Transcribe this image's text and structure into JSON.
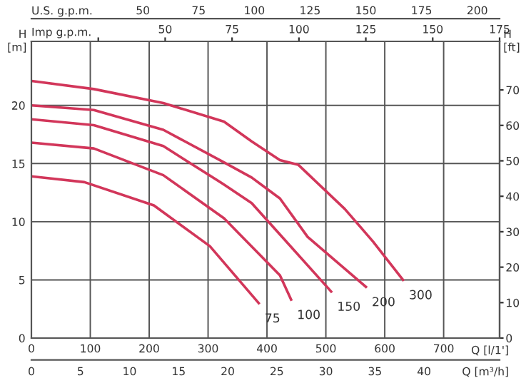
{
  "chart_data": {
    "type": "line",
    "xlabel": "Q [l/1']",
    "x2label": "Imp g.p.m.",
    "ylabel": "H [m]",
    "y2label": "H [ft]",
    "xlim": [
      0,
      795
    ],
    "xticks": [
      0,
      100,
      200,
      300,
      400,
      500,
      600,
      700
    ],
    "x2lim": [
      0,
      175
    ],
    "x2ticks": [
      {
        "value": 25,
        "label": null
      },
      50,
      75,
      100,
      125,
      150,
      175
    ],
    "ylim": [
      0,
      25.5
    ],
    "yticks": [
      0,
      5,
      10,
      15,
      20
    ],
    "y2lim": [
      0,
      83.7
    ],
    "y2ticks": [
      0,
      10,
      20,
      30,
      40,
      50,
      60,
      70
    ],
    "grid": true,
    "marker": "none",
    "line_style": "solid",
    "annotations": [
      "U.S. g.p.m.",
      "50",
      "75",
      "100",
      "125",
      "150",
      "175",
      "200",
      "Q [m³/h]",
      "0",
      "5",
      "10",
      "15",
      "20",
      "25",
      "30",
      "35",
      "40"
    ],
    "series": [
      {
        "name": "75",
        "color": "#d2365a",
        "x": [
          0,
          90,
          208,
          303,
          386
        ],
        "values": [
          13.9,
          13.4,
          11.4,
          7.9,
          3.0
        ]
      },
      {
        "name": "100",
        "color": "#d2365a",
        "x": [
          0,
          106,
          224,
          327,
          422,
          441
        ],
        "values": [
          16.8,
          16.3,
          14.0,
          10.3,
          5.4,
          3.3
        ]
      },
      {
        "name": "150",
        "color": "#d2365a",
        "x": [
          0,
          106,
          224,
          327,
          374,
          422,
          509
        ],
        "values": [
          18.8,
          18.3,
          16.5,
          13.2,
          11.6,
          8.9,
          4.0
        ]
      },
      {
        "name": "200",
        "color": "#d2365a",
        "x": [
          0,
          106,
          224,
          327,
          374,
          422,
          469,
          568
        ],
        "values": [
          20.0,
          19.6,
          17.9,
          15.1,
          13.8,
          12.0,
          8.7,
          4.4
        ]
      },
      {
        "name": "300",
        "color": "#d2365a",
        "x": [
          0,
          106,
          224,
          327,
          374,
          422,
          453,
          532,
          580,
          631
        ],
        "values": [
          22.1,
          21.4,
          20.2,
          18.6,
          16.9,
          15.3,
          14.9,
          11.1,
          8.3,
          5.0
        ]
      }
    ]
  }
}
